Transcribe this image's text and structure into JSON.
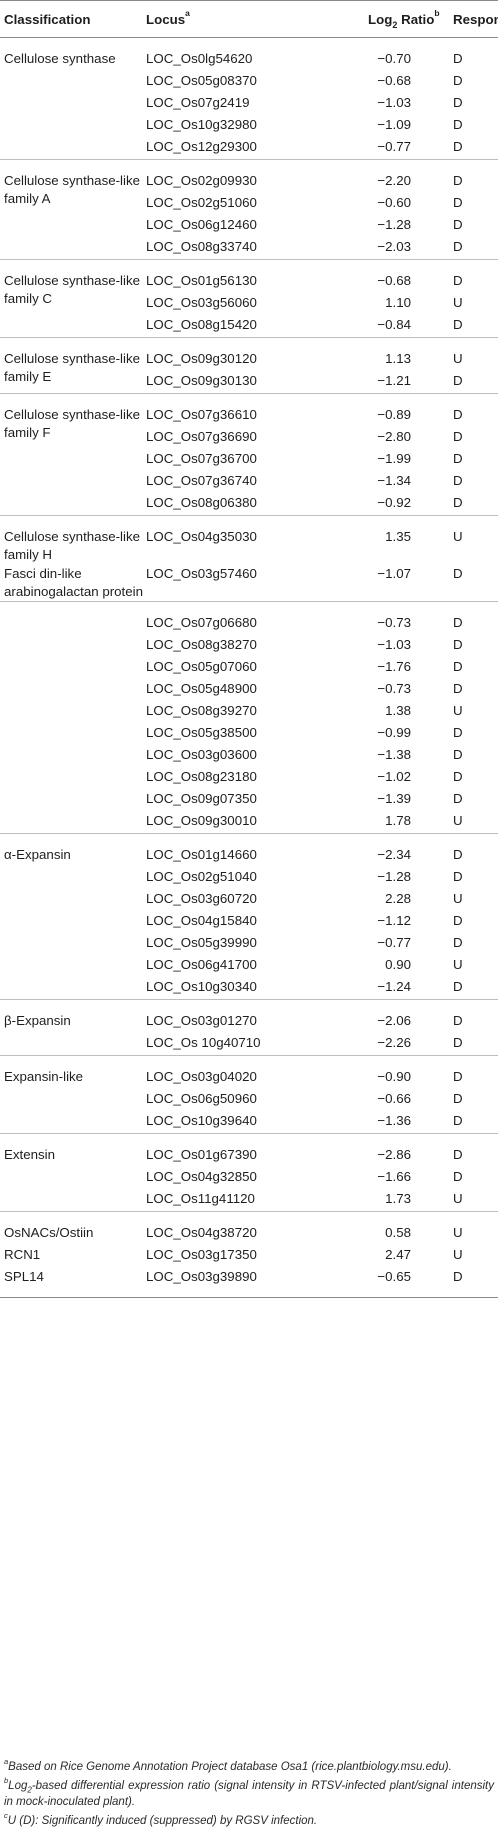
{
  "headers": {
    "classification": "Classification",
    "locus": "Locus",
    "locus_sup": "a",
    "ratio_pre": "Log",
    "ratio_sub": "2",
    "ratio_post": " Ratio",
    "ratio_sup": "b",
    "response": "Response",
    "response_sup": "c"
  },
  "groups": [
    {
      "classification": "Cellulose synthase",
      "rows": [
        {
          "locus": "LOC_Os0lg54620",
          "ratio": "−0.70",
          "response": "D"
        },
        {
          "locus": "LOC_Os05g08370",
          "ratio": "−0.68",
          "response": "D"
        },
        {
          "locus": "LOC_Os07g2419",
          "ratio": "−1.03",
          "response": "D"
        },
        {
          "locus": "LOC_Os10g32980",
          "ratio": "−1.09",
          "response": "D"
        },
        {
          "locus": "LOC_Os12g29300",
          "ratio": "−0.77",
          "response": "D"
        }
      ]
    },
    {
      "classification": "Cellulose synthase-like family A",
      "rows": [
        {
          "locus": "LOC_Os02g09930",
          "ratio": "−2.20",
          "response": "D"
        },
        {
          "locus": "LOC_Os02g51060",
          "ratio": "−0.60",
          "response": "D"
        },
        {
          "locus": "LOC_Os06g12460",
          "ratio": "−1.28",
          "response": "D"
        },
        {
          "locus": "LOC_Os08g33740",
          "ratio": "−2.03",
          "response": "D"
        }
      ]
    },
    {
      "classification": "Cellulose synthase-like family C",
      "rows": [
        {
          "locus": "LOC_Os01g56130",
          "ratio": "−0.68",
          "response": "D"
        },
        {
          "locus": "LOC_Os03g56060",
          "ratio": "1.10",
          "response": "U"
        },
        {
          "locus": "LOC_Os08g15420",
          "ratio": "−0.84",
          "response": "D"
        }
      ]
    },
    {
      "classification": "Cellulose synthase-like family E",
      "rows": [
        {
          "locus": "LOC_Os09g30120",
          "ratio": "1.13",
          "response": "U"
        },
        {
          "locus": "LOC_Os09g30130",
          "ratio": "−1.21",
          "response": "D"
        }
      ]
    },
    {
      "classification": "Cellulose synthase-like family F",
      "rows": [
        {
          "locus": "LOC_Os07g36610",
          "ratio": "−0.89",
          "response": "D"
        },
        {
          "locus": "LOC_Os07g36690",
          "ratio": "−2.80",
          "response": "D"
        },
        {
          "locus": "LOC_Os07g36700",
          "ratio": "−1.99",
          "response": "D"
        },
        {
          "locus": "LOC_Os07g36740",
          "ratio": "−1.34",
          "response": "D"
        },
        {
          "locus": "LOC_Os08g06380",
          "ratio": "−0.92",
          "response": "D"
        }
      ]
    },
    {
      "classification": "Cellulose synthase-like family H",
      "rows": [
        {
          "locus": "LOC_Os04g35030",
          "ratio": "1.35",
          "response": "U"
        }
      ]
    },
    {
      "classification": "Fasci din-like arabinogalactan protein",
      "rows": [
        {
          "locus": "LOC_Os03g57460",
          "ratio": "−1.07",
          "response": "D"
        }
      ]
    },
    {
      "classification": "",
      "rows": [
        {
          "locus": "LOC_Os07g06680",
          "ratio": "−0.73",
          "response": "D"
        },
        {
          "locus": "LOC_Os08g38270",
          "ratio": "−1.03",
          "response": "D"
        },
        {
          "locus": "LOC_Os05g07060",
          "ratio": "−1.76",
          "response": "D"
        },
        {
          "locus": "LOC_Os05g48900",
          "ratio": "−0.73",
          "response": "D"
        },
        {
          "locus": "LOC_Os08g39270",
          "ratio": "1.38",
          "response": "U"
        },
        {
          "locus": "LOC_Os05g38500",
          "ratio": "−0.99",
          "response": "D"
        },
        {
          "locus": "LOC_Os03g03600",
          "ratio": "−1.38",
          "response": "D"
        },
        {
          "locus": "LOC_Os08g23180",
          "ratio": "−1.02",
          "response": "D"
        },
        {
          "locus": "LOC_Os09g07350",
          "ratio": "−1.39",
          "response": "D"
        },
        {
          "locus": "LOC_Os09g30010",
          "ratio": "1.78",
          "response": "U"
        }
      ]
    },
    {
      "classification": "α-Expansin",
      "rows": [
        {
          "locus": "LOC_Os01g14660",
          "ratio": "−2.34",
          "response": "D"
        },
        {
          "locus": "LOC_Os02g51040",
          "ratio": "−1.28",
          "response": "D"
        },
        {
          "locus": "LOC_Os03g60720",
          "ratio": "2.28",
          "response": "U"
        },
        {
          "locus": "LOC_Os04g15840",
          "ratio": "−1.12",
          "response": "D"
        },
        {
          "locus": "LOC_Os05g39990",
          "ratio": "−0.77",
          "response": "D"
        },
        {
          "locus": "LOC_Os06g41700",
          "ratio": "0.90",
          "response": "U"
        },
        {
          "locus": "LOC_Os10g30340",
          "ratio": "−1.24",
          "response": "D"
        }
      ]
    },
    {
      "classification": "β-Expansin",
      "rows": [
        {
          "locus": "LOC_Os03g01270",
          "ratio": "−2.06",
          "response": "D"
        },
        {
          "locus": "LOC_Os 10g40710",
          "ratio": "−2.26",
          "response": "D"
        }
      ]
    },
    {
      "classification": "Expansin-like",
      "rows": [
        {
          "locus": "LOC_Os03g04020",
          "ratio": "−0.90",
          "response": "D"
        },
        {
          "locus": "LOC_Os06g50960",
          "ratio": "−0.66",
          "response": "D"
        },
        {
          "locus": "LOC_Os10g39640",
          "ratio": "−1.36",
          "response": "D"
        }
      ]
    },
    {
      "classification": "Extensin",
      "rows": [
        {
          "locus": "LOC_Os01g67390",
          "ratio": "−2.86",
          "response": "D"
        },
        {
          "locus": "LOC_Os04g32850",
          "ratio": "−1.66",
          "response": "D"
        },
        {
          "locus": "LOC_Os11g41120",
          "ratio": "1.73",
          "response": "U"
        }
      ]
    },
    {
      "classification": "OsNACs/Ostiin",
      "rows": [
        {
          "locus": "LOC_Os04g38720",
          "ratio": "0.58",
          "response": "U"
        }
      ]
    },
    {
      "classification": "RCN1",
      "rows": [
        {
          "locus": "LOC_Os03g17350",
          "ratio": "2.47",
          "response": "U"
        }
      ]
    },
    {
      "classification": "SPL14",
      "rows": [
        {
          "locus": "LOC_Os03g39890",
          "ratio": "−0.65",
          "response": "D"
        }
      ]
    }
  ],
  "footnotes": {
    "a_mark": "a",
    "a_text": "Based on Rice Genome Annotation Project database Osa1 (rice.plantbiology.msu.edu).",
    "b_mark": "b",
    "b_pre": "Log",
    "b_sub": "2",
    "b_text": "-based differential expression ratio (signal intensity in RTSV-infected plant/signal intensity in mock-inoculated plant).",
    "c_mark": "c",
    "c_text": "U (D): Significantly induced (suppressed) by RGSV infection."
  }
}
